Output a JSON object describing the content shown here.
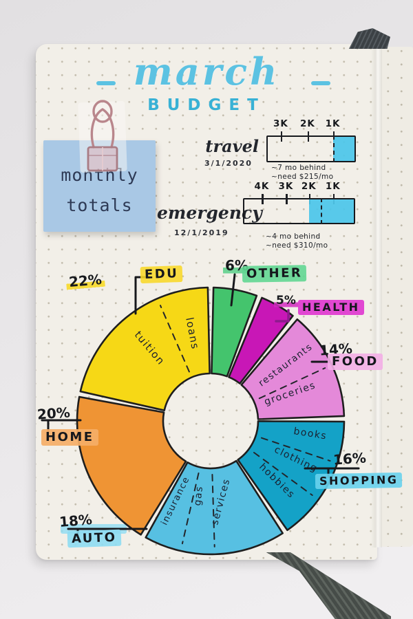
{
  "title": {
    "month": "march",
    "subtitle": "BUDGET"
  },
  "sticky_note": {
    "line1": "monthly",
    "line2": "totals"
  },
  "callouts": {
    "edu": {
      "pct": "22%",
      "name": "EDU"
    },
    "other": {
      "pct": "6%",
      "name": "OTHER"
    },
    "health": {
      "pct": "5%",
      "name": "HEALTH"
    },
    "food": {
      "pct": "14%",
      "name": "FOOD"
    },
    "shopping": {
      "pct": "16%",
      "name": "SHOPPING"
    },
    "home": {
      "pct": "20%",
      "name": "HOME"
    },
    "auto": {
      "pct": "18%",
      "name": "AUTO"
    }
  },
  "chart_data": [
    {
      "type": "pie",
      "variant": "donut",
      "title": "march BUDGET",
      "unit": "%",
      "direction": "clockwise",
      "start_angle_deg": 0,
      "categories": [
        "OTHER",
        "HEALTH",
        "FOOD",
        "SHOPPING",
        "AUTO",
        "HOME",
        "EDU"
      ],
      "values": [
        6,
        5,
        14,
        16,
        18,
        20,
        22
      ],
      "colors": [
        "#44c46d",
        "#c817b6",
        "#e489d9",
        "#14a2c7",
        "#57c0e2",
        "#ef9434",
        "#f6d816"
      ],
      "subcategories": [
        [],
        [],
        [
          "restaurants",
          "groceries"
        ],
        [
          "books",
          "clothing",
          "hobbies"
        ],
        [
          "services",
          "gas",
          "insurance"
        ],
        [],
        [
          "tuition",
          "loans"
        ]
      ]
    },
    {
      "type": "bar",
      "title": "travel",
      "date": "3/1/2020",
      "axis_ticks": [
        "3K",
        "2K",
        "1K"
      ],
      "filled_note": "filled from 1K mark to end",
      "notes": [
        "~7 mo behind",
        "~need $215/mo"
      ]
    },
    {
      "type": "bar",
      "title": "emergency",
      "date": "12/1/2019",
      "axis_ticks": [
        "4K",
        "3K",
        "2K",
        "1K"
      ],
      "filled_note": "filled from 2K mark to end",
      "notes": [
        "~4 mo behind",
        "~need $310/mo"
      ]
    }
  ]
}
